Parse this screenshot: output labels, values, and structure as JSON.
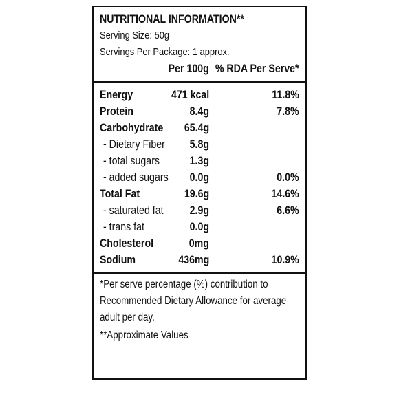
{
  "panel": {
    "title": "NUTRITIONAL INFORMATION**",
    "serving_size": "Serving Size: 50g",
    "servings_per_package": "Servings Per Package: 1 approx.",
    "column_per100": "Per 100g",
    "column_rda": "% RDA Per Serve*",
    "rows": [
      {
        "name": "Energy",
        "per100": "471 kcal",
        "rda": "11.8%"
      },
      {
        "name": "Protein",
        "per100": "8.4g",
        "rda": "7.8%"
      },
      {
        "name": "Carbohydrate",
        "per100": "65.4g",
        "rda": ""
      },
      {
        "name": "- Dietary Fiber",
        "per100": "5.8g",
        "rda": ""
      },
      {
        "name": "- total sugars",
        "per100": "1.3g",
        "rda": ""
      },
      {
        "name": "- added sugars",
        "per100": "0.0g",
        "rda": "0.0%"
      },
      {
        "name": "Total Fat",
        "per100": "19.6g",
        "rda": "14.6%"
      },
      {
        "name": "- saturated fat",
        "per100": "2.9g",
        "rda": "6.6%"
      },
      {
        "name": "- trans fat",
        "per100": "0.0g",
        "rda": ""
      },
      {
        "name": "Cholesterol",
        "per100": "0mg",
        "rda": ""
      },
      {
        "name": "Sodium",
        "per100": "436mg",
        "rda": "10.9%"
      }
    ],
    "footnote_lines": [
      "*Per serve percentage (%) contribution to",
      "Recommended Dietary Allowance for average",
      "adult per day.",
      "**Approximate Values"
    ]
  }
}
